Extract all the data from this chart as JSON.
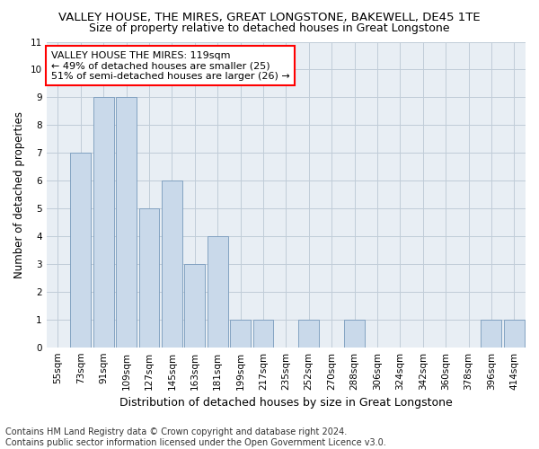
{
  "title": "VALLEY HOUSE, THE MIRES, GREAT LONGSTONE, BAKEWELL, DE45 1TE",
  "subtitle": "Size of property relative to detached houses in Great Longstone",
  "xlabel": "Distribution of detached houses by size in Great Longstone",
  "ylabel": "Number of detached properties",
  "categories": [
    "55sqm",
    "73sqm",
    "91sqm",
    "109sqm",
    "127sqm",
    "145sqm",
    "163sqm",
    "181sqm",
    "199sqm",
    "217sqm",
    "235sqm",
    "252sqm",
    "270sqm",
    "288sqm",
    "306sqm",
    "324sqm",
    "342sqm",
    "360sqm",
    "378sqm",
    "396sqm",
    "414sqm"
  ],
  "values": [
    0,
    7,
    9,
    9,
    5,
    6,
    3,
    4,
    1,
    1,
    0,
    1,
    0,
    1,
    0,
    0,
    0,
    0,
    0,
    1,
    1
  ],
  "bar_color": "#c9d9ea",
  "bar_edge_color": "#7799bb",
  "ylim": [
    0,
    11
  ],
  "yticks": [
    0,
    1,
    2,
    3,
    4,
    5,
    6,
    7,
    8,
    9,
    10,
    11
  ],
  "annotation_line1": "VALLEY HOUSE THE MIRES: 119sqm",
  "annotation_line2": "← 49% of detached houses are smaller (25)",
  "annotation_line3": "51% of semi-detached houses are larger (26) →",
  "annotation_box_color": "white",
  "annotation_edge_color": "red",
  "footnote": "Contains HM Land Registry data © Crown copyright and database right 2024.\nContains public sector information licensed under the Open Government Licence v3.0.",
  "bg_color": "#e8eef4",
  "grid_color": "#c0ccd8",
  "title_fontsize": 9.5,
  "subtitle_fontsize": 9,
  "xlabel_fontsize": 9,
  "ylabel_fontsize": 8.5,
  "tick_fontsize": 7.5,
  "annot_fontsize": 8,
  "footnote_fontsize": 7
}
